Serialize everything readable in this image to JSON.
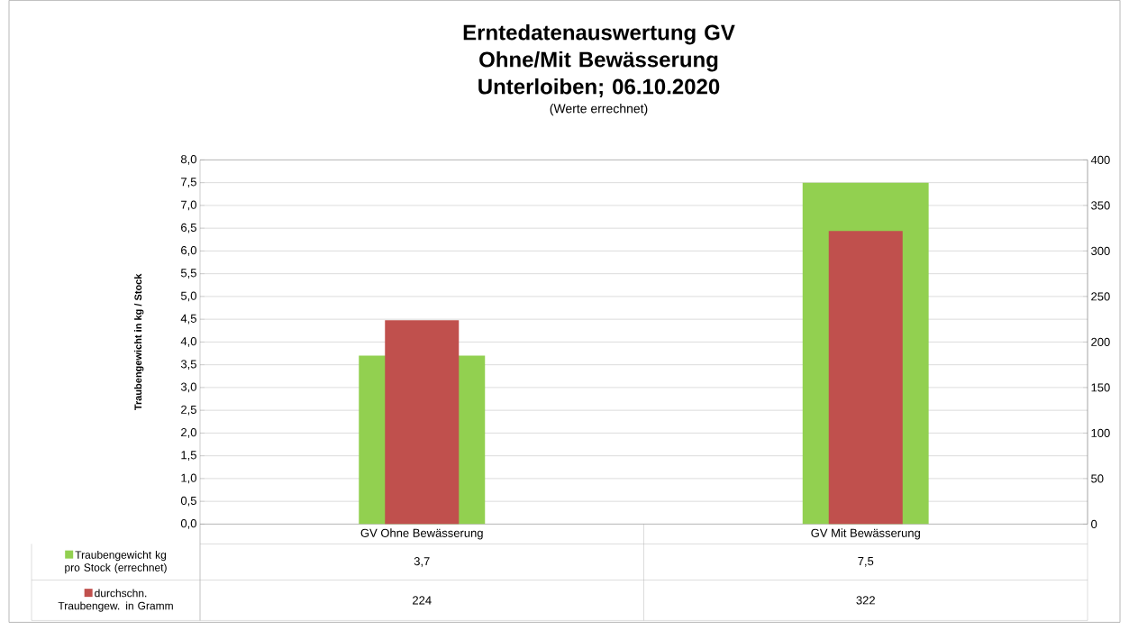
{
  "chart_data": {
    "type": "bar",
    "title": "Erntedatenauswertung GV Ohne/Mit Bewässerung Unterloiben; 06.10.2020",
    "subtitle": "(Werte errechnet)",
    "ylabel": "Traubengewicht in kg / Stock",
    "categories": [
      "GV Ohne Bewässerung",
      "GV Mit Bewässerung"
    ],
    "series": [
      {
        "name": "Traubengewicht kg pro Stock (errechnet)",
        "color": "#92d050",
        "values": [
          3.7,
          7.5
        ],
        "value_labels": [
          "3,7",
          "7,5"
        ]
      },
      {
        "name": "durchschn. Traubengew. in Gramm",
        "color": "#c0504d",
        "values": [
          224,
          322
        ],
        "value_labels": [
          "224",
          "322"
        ],
        "axis": "y2"
      }
    ],
    "ylim": [
      0,
      8
    ],
    "yticks": [
      {
        "value": 0,
        "label": "0,0"
      },
      {
        "value": 0.5,
        "label": "0,5"
      },
      {
        "value": 1,
        "label": "1,0"
      },
      {
        "value": 1.5,
        "label": "1,5"
      },
      {
        "value": 2,
        "label": "2,0"
      },
      {
        "value": 2.5,
        "label": "2,5"
      },
      {
        "value": 3,
        "label": "3,0"
      },
      {
        "value": 3.5,
        "label": "3,5"
      },
      {
        "value": 4,
        "label": "4,0"
      },
      {
        "value": 4.5,
        "label": "4,5"
      },
      {
        "value": 5,
        "label": "5,0"
      },
      {
        "value": 5.5,
        "label": "5,5"
      },
      {
        "value": 6,
        "label": "6,0"
      },
      {
        "value": 6.5,
        "label": "6,5"
      },
      {
        "value": 7,
        "label": "7,0"
      },
      {
        "value": 7.5,
        "label": "7,5"
      },
      {
        "value": 8,
        "label": "8,0"
      }
    ],
    "y2lim": [
      0,
      400
    ],
    "y2ticks": [
      0,
      50,
      100,
      150,
      200,
      250,
      300,
      350,
      400
    ],
    "grid": "y",
    "legend": "bottom"
  }
}
